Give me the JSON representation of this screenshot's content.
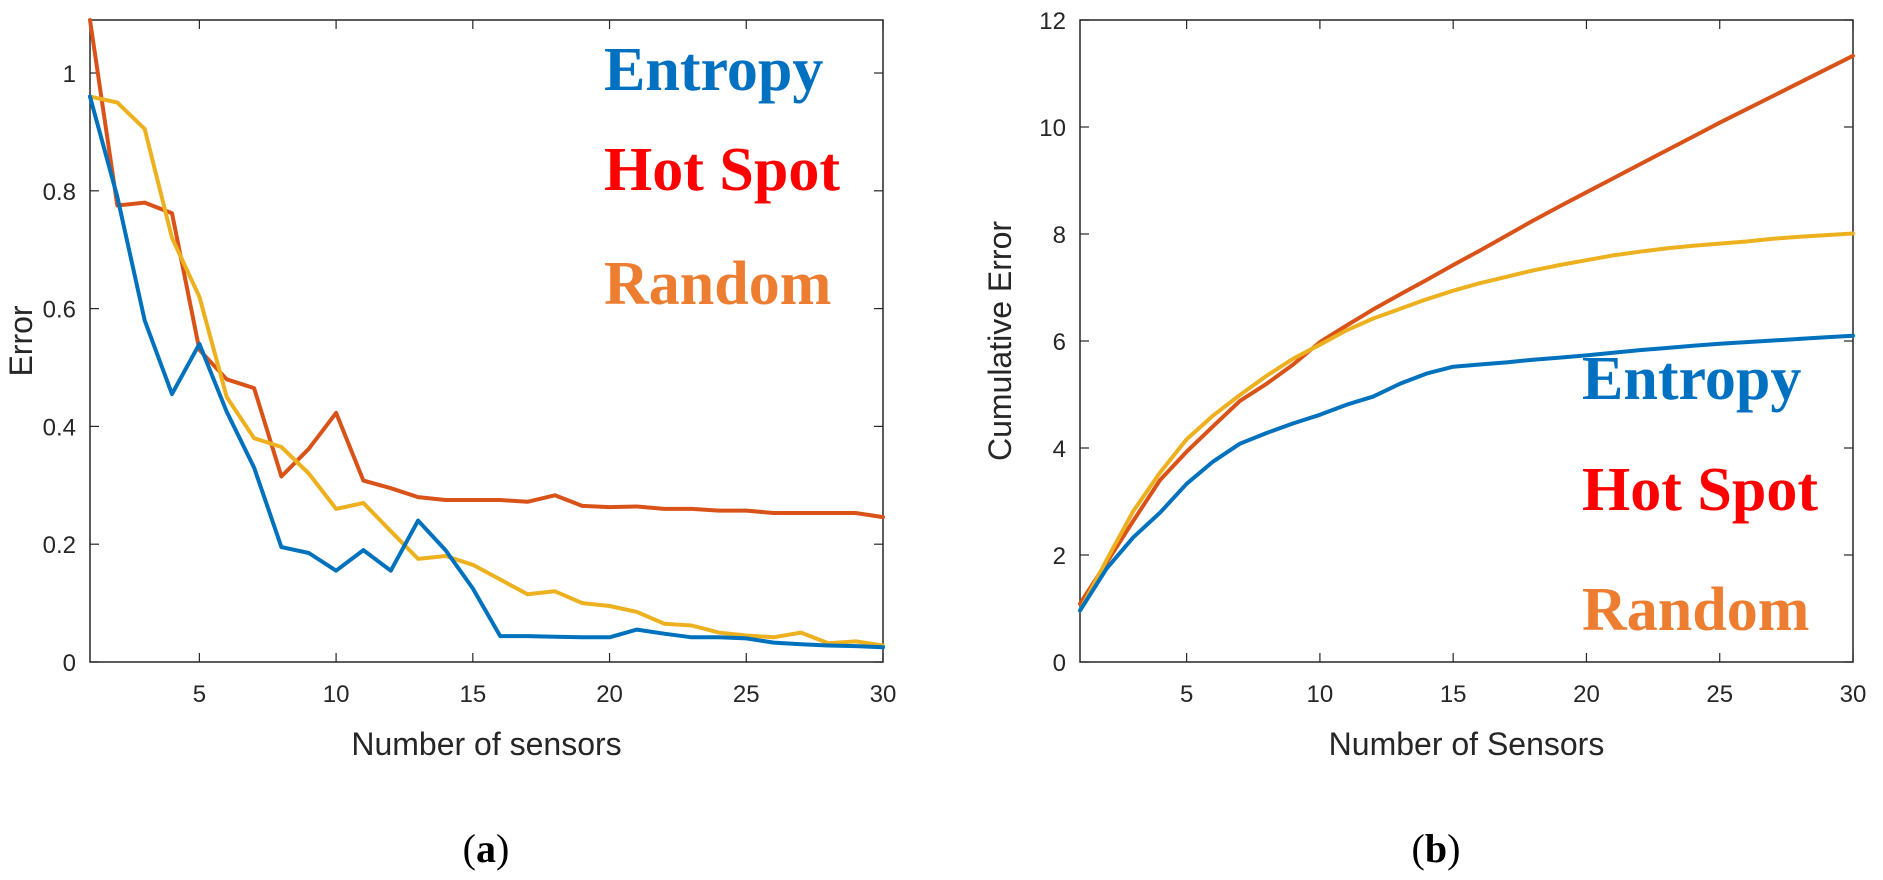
{
  "chart_data": [
    {
      "type": "line",
      "panel": "a",
      "caption_letter": "a",
      "title": "",
      "xlabel": "Number of sensors",
      "ylabel": "Error",
      "xlim": [
        1,
        30
      ],
      "ylim": [
        0,
        1.09
      ],
      "xticks": [
        5,
        10,
        15,
        20,
        25,
        30
      ],
      "yticks": [
        0,
        0.2,
        0.4,
        0.6,
        0.8,
        1
      ],
      "ytick_labels": [
        "0",
        "0.2",
        "0.4",
        "0.6",
        "0.8",
        "1"
      ],
      "legend_position": "top-right",
      "x": [
        1,
        2,
        3,
        4,
        5,
        6,
        7,
        8,
        9,
        10,
        11,
        12,
        13,
        14,
        15,
        16,
        17,
        18,
        19,
        20,
        21,
        22,
        23,
        24,
        25,
        26,
        27,
        28,
        29,
        30
      ],
      "series": [
        {
          "name": "Hot Spot",
          "color": "#D95319",
          "legend_color": "#FF0000",
          "values": [
            1.09,
            0.775,
            0.78,
            0.762,
            0.53,
            0.48,
            0.465,
            0.315,
            0.362,
            0.423,
            0.308,
            0.295,
            0.28,
            0.275,
            0.275,
            0.275,
            0.272,
            0.283,
            0.265,
            0.263,
            0.264,
            0.26,
            0.26,
            0.257,
            0.257,
            0.253,
            0.253,
            0.253,
            0.253,
            0.246
          ]
        },
        {
          "name": "Random",
          "color": "#EDB120",
          "legend_color": "#ED7D31",
          "values": [
            0.96,
            0.95,
            0.905,
            0.72,
            0.62,
            0.45,
            0.38,
            0.365,
            0.32,
            0.26,
            0.27,
            0.222,
            0.175,
            0.18,
            0.165,
            0.14,
            0.115,
            0.12,
            0.1,
            0.095,
            0.085,
            0.065,
            0.062,
            0.05,
            0.045,
            0.042,
            0.05,
            0.032,
            0.035,
            0.028
          ]
        },
        {
          "name": "Entropy",
          "color": "#0072BD",
          "legend_color": "#0070C0",
          "values": [
            0.96,
            0.79,
            0.58,
            0.455,
            0.54,
            0.425,
            0.33,
            0.195,
            0.185,
            0.155,
            0.19,
            0.155,
            0.24,
            0.19,
            0.125,
            0.044,
            0.044,
            0.043,
            0.042,
            0.042,
            0.055,
            0.048,
            0.042,
            0.042,
            0.04,
            0.033,
            0.03,
            0.028,
            0.027,
            0.025
          ]
        }
      ]
    },
    {
      "type": "line",
      "panel": "b",
      "caption_letter": "b",
      "title": "",
      "xlabel": "Number of Sensors",
      "ylabel": "Cumulative Error",
      "xlim": [
        1,
        30
      ],
      "ylim": [
        0,
        12
      ],
      "xticks": [
        5,
        10,
        15,
        20,
        25,
        30
      ],
      "yticks": [
        0,
        2,
        4,
        6,
        8,
        10,
        12
      ],
      "ytick_labels": [
        "0",
        "2",
        "4",
        "6",
        "8",
        "10",
        "12"
      ],
      "legend_position": "bottom-right",
      "x": [
        1,
        2,
        3,
        4,
        5,
        6,
        7,
        8,
        9,
        10,
        11,
        12,
        13,
        14,
        15,
        16,
        17,
        18,
        19,
        20,
        21,
        22,
        23,
        24,
        25,
        26,
        27,
        28,
        29,
        30
      ],
      "series": [
        {
          "name": "Hot Spot",
          "color": "#D95319",
          "legend_color": "#FF0000",
          "values": [
            1.09,
            1.86,
            2.64,
            3.4,
            3.93,
            4.41,
            4.88,
            5.2,
            5.56,
            5.98,
            6.29,
            6.59,
            6.87,
            7.14,
            7.42,
            7.69,
            7.97,
            8.25,
            8.52,
            8.78,
            9.04,
            9.3,
            9.56,
            9.82,
            10.08,
            10.33,
            10.58,
            10.83,
            11.08,
            11.33
          ]
        },
        {
          "name": "Random",
          "color": "#EDB120",
          "legend_color": "#ED7D31",
          "values": [
            0.96,
            1.91,
            2.82,
            3.54,
            4.16,
            4.61,
            4.99,
            5.35,
            5.67,
            5.93,
            6.2,
            6.42,
            6.6,
            6.78,
            6.94,
            7.08,
            7.2,
            7.32,
            7.42,
            7.51,
            7.6,
            7.67,
            7.73,
            7.78,
            7.82,
            7.86,
            7.91,
            7.95,
            7.98,
            8.01
          ]
        },
        {
          "name": "Entropy",
          "color": "#0072BD",
          "legend_color": "#0070C0",
          "values": [
            0.96,
            1.75,
            2.33,
            2.79,
            3.33,
            3.75,
            4.08,
            4.28,
            4.46,
            4.62,
            4.81,
            4.96,
            5.2,
            5.39,
            5.52,
            5.56,
            5.6,
            5.65,
            5.69,
            5.73,
            5.78,
            5.83,
            5.87,
            5.91,
            5.95,
            5.98,
            6.01,
            6.04,
            6.07,
            6.1
          ]
        }
      ]
    }
  ]
}
